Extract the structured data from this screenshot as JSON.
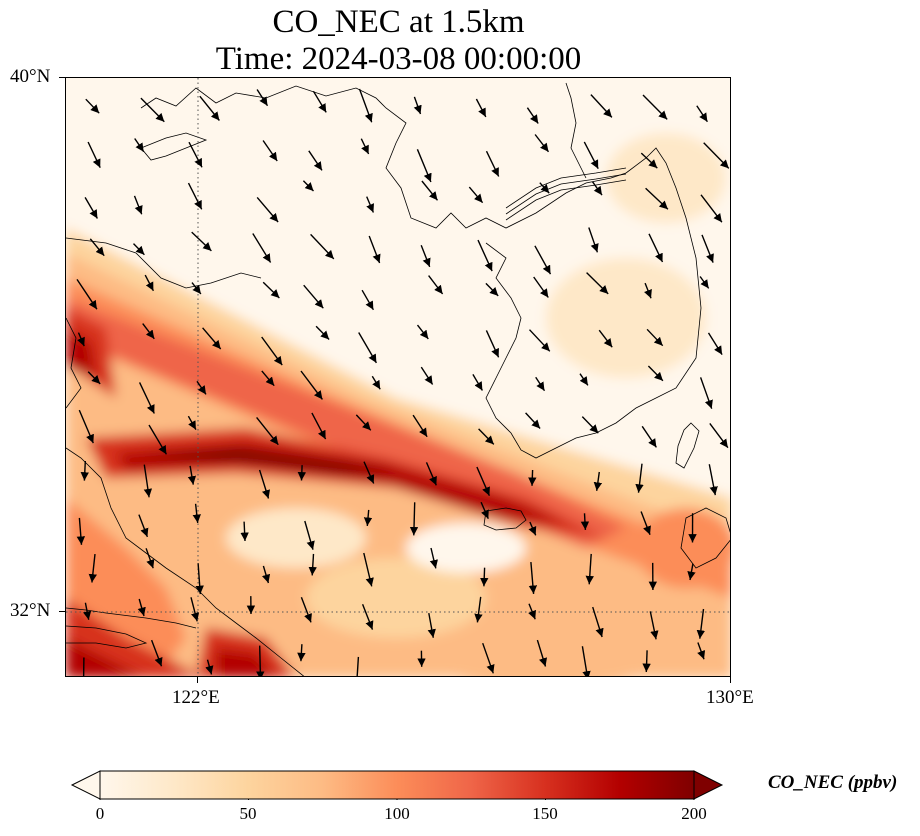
{
  "title_line1": "CO_NEC at 1.5km",
  "title_line2": "Time: 2024-03-08 00:00:00",
  "map": {
    "lat_ticks": [
      "40°N",
      "32°N"
    ],
    "lon_ticks": [
      "122°E",
      "130°E"
    ],
    "colormap": "OrRd",
    "gridlines": "dotted",
    "field_description": "CO concentration with wind vectors",
    "palette": [
      "#fff7ec",
      "#fee8c8",
      "#fdd49e",
      "#fdbb84",
      "#fc8d59",
      "#ef6548",
      "#d7301f",
      "#b30000",
      "#7f0000"
    ]
  },
  "colorbar": {
    "label": "CO_NEC (ppbv)",
    "ticks": [
      "0",
      "50",
      "100",
      "150",
      "200"
    ],
    "min": 0,
    "max": 200,
    "extend": "both"
  }
}
